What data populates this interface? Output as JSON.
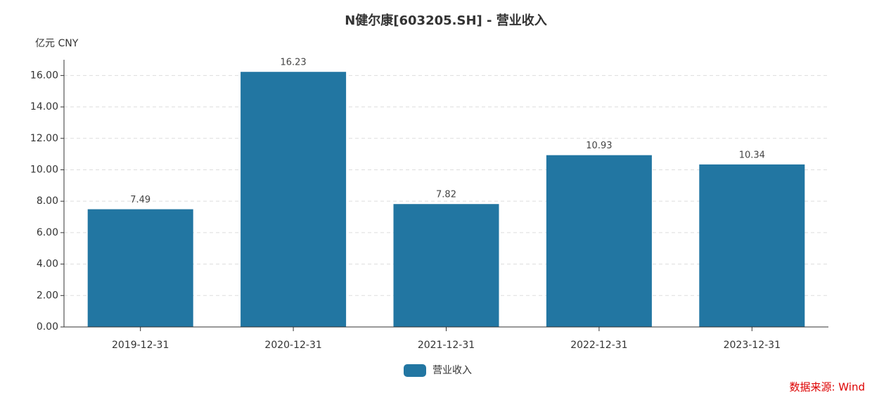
{
  "chart_data": {
    "type": "bar",
    "title": "N健尔康[603205.SH] - 营业收入",
    "y_unit": "亿元  CNY",
    "categories": [
      "2019-12-31",
      "2020-12-31",
      "2021-12-31",
      "2022-12-31",
      "2023-12-31"
    ],
    "series": [
      {
        "name": "营业收入",
        "color": "#2276a2",
        "values": [
          7.49,
          16.23,
          7.82,
          10.93,
          10.34
        ]
      }
    ],
    "ylim": [
      0,
      17
    ],
    "yticks": [
      {
        "value": 0,
        "label": "0.00"
      },
      {
        "value": 2,
        "label": "2.00"
      },
      {
        "value": 4,
        "label": "4.00"
      },
      {
        "value": 6,
        "label": "6.00"
      },
      {
        "value": 8,
        "label": "8.00"
      },
      {
        "value": 10,
        "label": "10.00"
      },
      {
        "value": 12,
        "label": "12.00"
      },
      {
        "value": 14,
        "label": "14.00"
      },
      {
        "value": 16,
        "label": "16.00"
      }
    ],
    "grid": true,
    "legend": "bottom",
    "source": "数据来源: Wind"
  }
}
